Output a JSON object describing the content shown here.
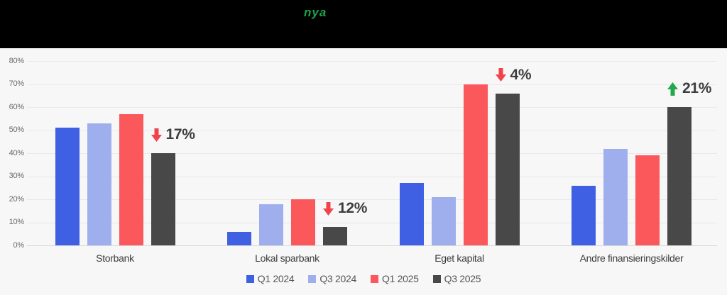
{
  "header": {
    "background": "#000000",
    "logo_text": "nya",
    "logo_color": "#1aa34a"
  },
  "chart_data": {
    "type": "bar",
    "categories": [
      "Storbank",
      "Lokal sparbank",
      "Eget kapital",
      "Andre finansieringskilder"
    ],
    "series": [
      {
        "name": "Q1 2024",
        "color": "#3f60e3",
        "values": [
          51,
          6,
          27,
          26
        ]
      },
      {
        "name": "Q3 2024",
        "color": "#9fafee",
        "values": [
          53,
          18,
          21,
          42
        ]
      },
      {
        "name": "Q1 2025",
        "color": "#fb585c",
        "values": [
          57,
          20,
          70,
          39
        ]
      },
      {
        "name": "Q3 2025",
        "color": "#484848",
        "values": [
          40,
          8,
          66,
          60
        ]
      }
    ],
    "y_ticks": [
      "0%",
      "10%",
      "20%",
      "30%",
      "40%",
      "50%",
      "60%",
      "70%",
      "80%"
    ],
    "ylim": [
      0,
      80
    ],
    "grid": true,
    "legend_position": "bottom",
    "annotations": [
      {
        "category": "Storbank",
        "direction": "down",
        "label": "17%",
        "arrow_color": "#f2434a"
      },
      {
        "category": "Lokal sparbank",
        "direction": "down",
        "label": "12%",
        "arrow_color": "#f2434a"
      },
      {
        "category": "Eget kapital",
        "direction": "down",
        "label": "4%",
        "arrow_color": "#f2434a"
      },
      {
        "category": "Andre finansieringskilder",
        "direction": "up",
        "label": "21%",
        "arrow_color": "#21a94c"
      }
    ]
  }
}
